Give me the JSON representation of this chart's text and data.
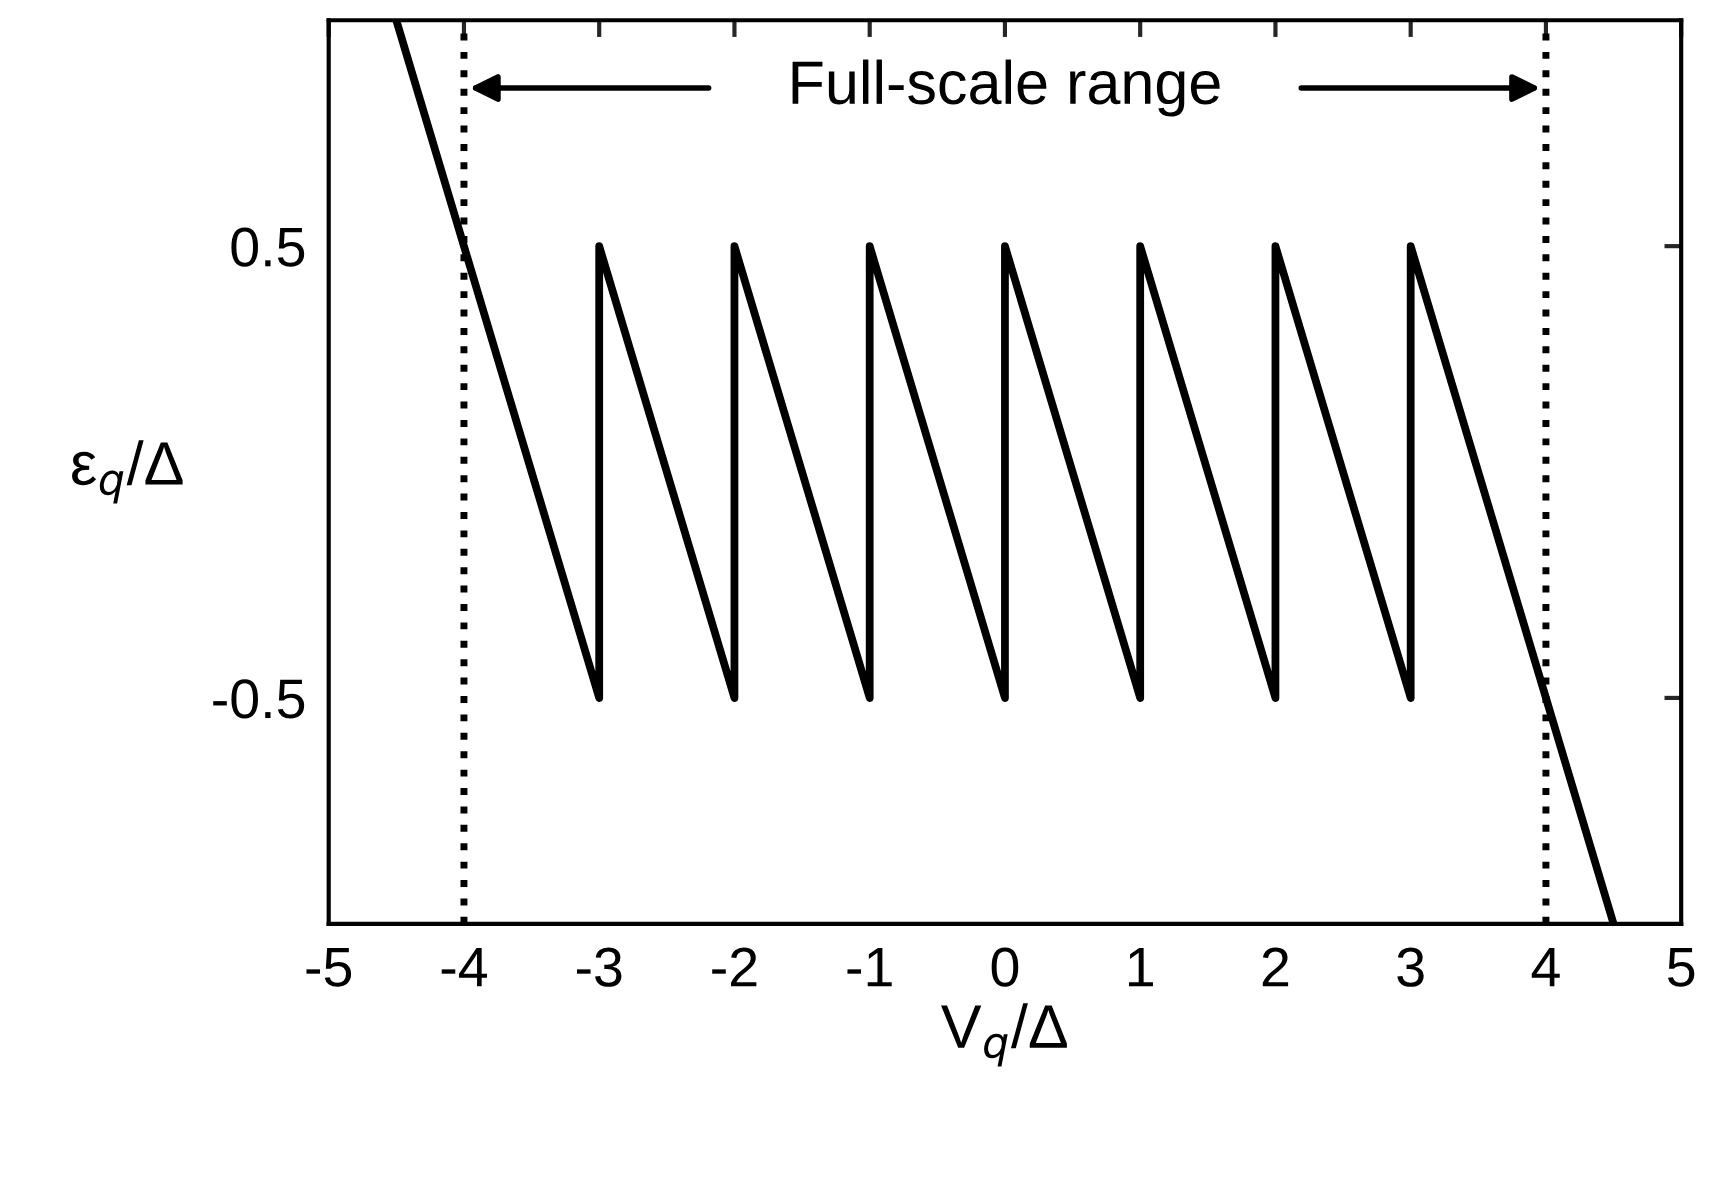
{
  "chart_data": {
    "type": "line",
    "xlabel": "V$_{q}$/Δ",
    "ylabel": "ε$_{q}$/Δ",
    "series": [
      {
        "color": "#000000",
        "x": [
          -4.5,
          -3,
          -3,
          -2,
          -2,
          -1,
          -1,
          0,
          0,
          1,
          1,
          2,
          2,
          3,
          3,
          4.5
        ],
        "values": [
          1,
          -0.5,
          0.5,
          -0.5,
          0.5,
          -0.5,
          0.5,
          -0.5,
          0.5,
          -0.5,
          0.5,
          -0.5,
          0.5,
          -0.5,
          0.5,
          -1
        ]
      }
    ],
    "xlim": [
      -5,
      5
    ],
    "ylim": [
      -1,
      1
    ],
    "xticks": [
      {
        "value": -5,
        "label": "-5"
      },
      {
        "value": -4,
        "label": "-4"
      },
      {
        "value": -3,
        "label": "-3"
      },
      {
        "value": -2,
        "label": "-2"
      },
      {
        "value": -1,
        "label": "-1"
      },
      0,
      1,
      2,
      3,
      4,
      5
    ],
    "yticks": [
      {
        "value": -0.5,
        "label": "-0.5"
      },
      0.5
    ],
    "ref_lines": [
      {
        "axis": "x",
        "value": -4,
        "color": "#000000",
        "line_style": "dotted"
      },
      {
        "axis": "x",
        "value": 4,
        "color": "#000000",
        "line_style": "dotted"
      }
    ],
    "annotations": [
      "Full-scale range"
    ],
    "grid": false,
    "marker": "none",
    "line_style": "solid"
  }
}
